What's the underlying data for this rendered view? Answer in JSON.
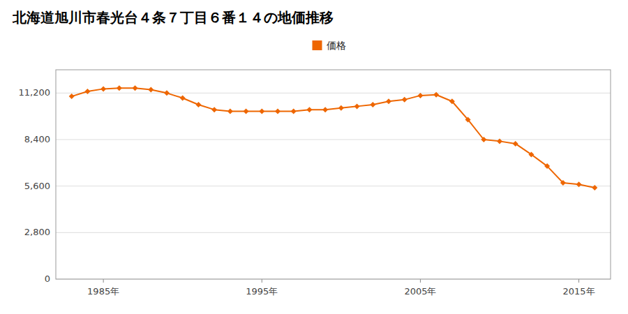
{
  "chart_data": {
    "type": "line",
    "title": "北海道旭川市春光台４条７丁目６番１４の地価推移",
    "x": [
      1983,
      1984,
      1985,
      1986,
      1987,
      1988,
      1989,
      1990,
      1991,
      1992,
      1993,
      1994,
      1995,
      1996,
      1997,
      1998,
      1999,
      2000,
      2001,
      2002,
      2003,
      2004,
      2005,
      2006,
      2007,
      2008,
      2009,
      2010,
      2011,
      2012,
      2013,
      2014,
      2015,
      2016
    ],
    "series": [
      {
        "name": "価格",
        "color": "#ee6600",
        "marker": "diamond",
        "values": [
          11000,
          11300,
          11450,
          11500,
          11500,
          11400,
          11200,
          10900,
          10500,
          10200,
          10100,
          10100,
          10100,
          10100,
          10100,
          10200,
          10200,
          10300,
          10400,
          10500,
          10700,
          10800,
          11050,
          11100,
          10700,
          9600,
          8400,
          8300,
          8150,
          7500,
          6800,
          5800,
          5700,
          5500
        ]
      }
    ],
    "xlim": [
      1982,
      2017
    ],
    "xticks": [
      {
        "value": 1985,
        "label": "1985年"
      },
      {
        "value": 1995,
        "label": "1995年"
      },
      {
        "value": 2005,
        "label": "2005年"
      },
      {
        "value": 2015,
        "label": "2015年"
      }
    ],
    "ylim": [
      0,
      12600
    ],
    "yticks": [
      0,
      {
        "value": 2800,
        "label": "2,800"
      },
      {
        "value": 5600,
        "label": "5,600"
      },
      {
        "value": 8400,
        "label": "8,400"
      },
      {
        "value": 11200,
        "label": "11,200"
      }
    ],
    "grid": true,
    "legend": "top"
  }
}
